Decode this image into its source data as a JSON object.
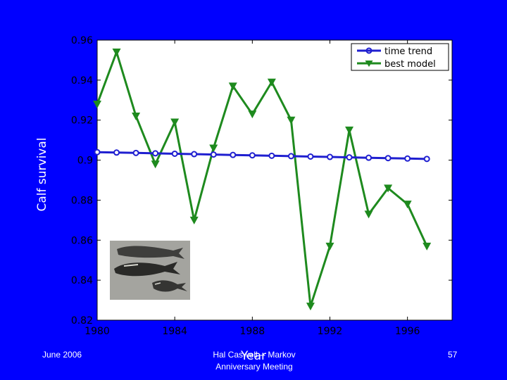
{
  "footer": {
    "date": "June 2006",
    "credit_line1": "Hal Caswell -- Markov",
    "credit_line2": "Anniversary Meeting",
    "page_number": "57"
  },
  "photo_icon": "right-whales-photo",
  "colors": {
    "background": "#0000ff",
    "plot_bg": "#ffffff",
    "time_trend": "#1f1fd0",
    "best_model": "#1e8a1e"
  },
  "chart_data": {
    "type": "line",
    "xlabel": "Year",
    "ylabel": "Calf survival",
    "xlim": [
      1980,
      1998.3
    ],
    "ylim": [
      0.82,
      0.96
    ],
    "xticks": [
      "1980",
      "1984",
      "1988",
      "1992",
      "1996"
    ],
    "yticks": [
      "0.82",
      "0.84",
      "0.86",
      "0.88",
      "0.9",
      "0.92",
      "0.94",
      "0.96"
    ],
    "legend_position": "top-right",
    "x": [
      1980,
      1981,
      1982,
      1983,
      1984,
      1985,
      1986,
      1987,
      1988,
      1989,
      1990,
      1991,
      1992,
      1993,
      1994,
      1995,
      1996,
      1997
    ],
    "series": [
      {
        "name": "time trend",
        "marker": "circle",
        "values": [
          0.904,
          0.9038,
          0.9036,
          0.9034,
          0.9032,
          0.903,
          0.9028,
          0.9026,
          0.9024,
          0.9022,
          0.902,
          0.9018,
          0.9016,
          0.9014,
          0.9012,
          0.901,
          0.9008,
          0.9006
        ]
      },
      {
        "name": "best model",
        "marker": "triangle-down",
        "values": [
          0.928,
          0.954,
          0.922,
          0.898,
          0.919,
          0.87,
          0.906,
          0.937,
          0.923,
          0.939,
          0.92,
          0.827,
          0.857,
          0.915,
          0.873,
          0.886,
          0.878,
          0.857
        ]
      }
    ]
  }
}
